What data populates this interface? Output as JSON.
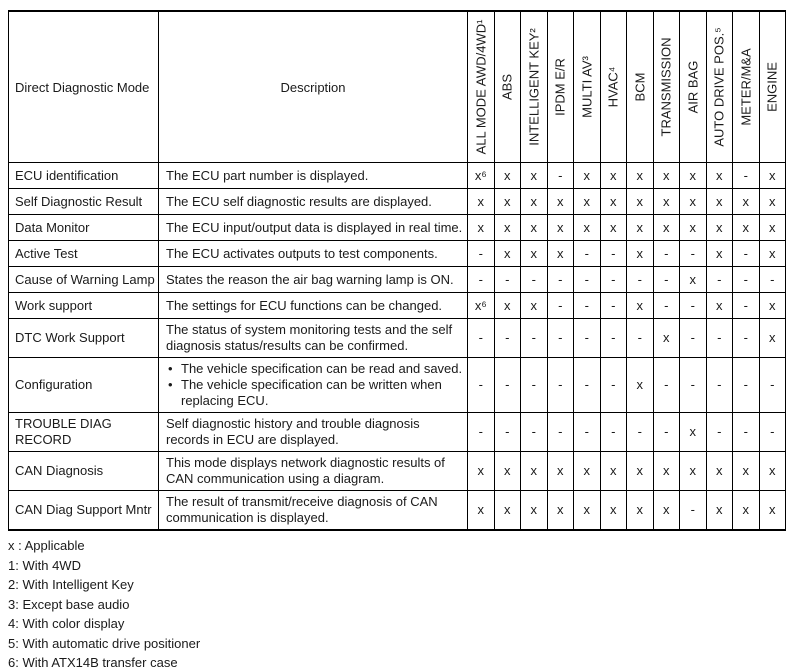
{
  "table": {
    "header": {
      "mode_col": "Direct Diagnostic Mode",
      "desc_col": "Description",
      "system_cols": [
        "ALL MODE AWD/4WD¹",
        "ABS",
        "INTELLIGENT KEY²",
        "IPDM E/R",
        "MULTI AV³",
        "HVAC⁴",
        "BCM",
        "TRANSMISSION",
        "AIR BAG",
        "AUTO DRIVE POS.⁵",
        "METER/M&A",
        "ENGINE"
      ]
    },
    "rows": [
      {
        "mode": "ECU identification",
        "bullets": false,
        "description": [
          "The ECU part number is displayed."
        ],
        "values": [
          "x⁶",
          "x",
          "x",
          "-",
          "x",
          "x",
          "x",
          "x",
          "x",
          "x",
          "-",
          "x"
        ]
      },
      {
        "mode": "Self Diagnostic Result",
        "bullets": false,
        "description": [
          "The ECU self diagnostic results are displayed."
        ],
        "values": [
          "x",
          "x",
          "x",
          "x",
          "x",
          "x",
          "x",
          "x",
          "x",
          "x",
          "x",
          "x"
        ]
      },
      {
        "mode": "Data Monitor",
        "bullets": false,
        "description": [
          "The ECU input/output data is displayed in real time."
        ],
        "values": [
          "x",
          "x",
          "x",
          "x",
          "x",
          "x",
          "x",
          "x",
          "x",
          "x",
          "x",
          "x"
        ]
      },
      {
        "mode": "Active Test",
        "bullets": false,
        "description": [
          "The ECU activates outputs to test components."
        ],
        "values": [
          "-",
          "x",
          "x",
          "x",
          "-",
          "-",
          "x",
          "-",
          "-",
          "x",
          "-",
          "x"
        ]
      },
      {
        "mode": "Cause of Warning Lamp",
        "bullets": false,
        "description": [
          "States the reason the air bag warning lamp is ON."
        ],
        "values": [
          "-",
          "-",
          "-",
          "-",
          "-",
          "-",
          "-",
          "-",
          "x",
          "-",
          "-",
          "-"
        ]
      },
      {
        "mode": "Work support",
        "bullets": false,
        "description": [
          "The settings for ECU functions can be changed."
        ],
        "values": [
          "x⁶",
          "x",
          "x",
          "-",
          "-",
          "-",
          "x",
          "-",
          "-",
          "x",
          "-",
          "x"
        ]
      },
      {
        "mode": "DTC Work Support",
        "bullets": false,
        "description": [
          "The status of system monitoring tests and the self diagnosis status/results can be confirmed."
        ],
        "values": [
          "-",
          "-",
          "-",
          "-",
          "-",
          "-",
          "-",
          "x",
          "-",
          "-",
          "-",
          "x"
        ]
      },
      {
        "mode": "Configuration",
        "bullets": true,
        "description": [
          "The vehicle specification can be read and saved.",
          "The vehicle specification can be written when replacing ECU."
        ],
        "values": [
          "-",
          "-",
          "-",
          "-",
          "-",
          "-",
          "x",
          "-",
          "-",
          "-",
          "-",
          "-"
        ]
      },
      {
        "mode": "TROUBLE DIAG RECORD",
        "bullets": false,
        "description": [
          "Self diagnostic history and trouble diagnosis records in ECU are displayed."
        ],
        "values": [
          "-",
          "-",
          "-",
          "-",
          "-",
          "-",
          "-",
          "-",
          "x",
          "-",
          "-",
          "-"
        ]
      },
      {
        "mode": "CAN Diagnosis",
        "bullets": false,
        "description": [
          "This mode displays network diagnostic results of CAN communication using a diagram."
        ],
        "values": [
          "x",
          "x",
          "x",
          "x",
          "x",
          "x",
          "x",
          "x",
          "x",
          "x",
          "x",
          "x"
        ]
      },
      {
        "mode": "CAN Diag Support Mntr",
        "bullets": false,
        "description": [
          "The result of transmit/receive diagnosis of CAN communication is displayed."
        ],
        "values": [
          "x",
          "x",
          "x",
          "x",
          "x",
          "x",
          "x",
          "x",
          "-",
          "x",
          "x",
          "x"
        ]
      }
    ]
  },
  "footnotes": [
    "x : Applicable",
    "1: With 4WD",
    "2: With Intelligent Key",
    "3: Except base audio",
    "4: With color display",
    "5: With automatic drive positioner",
    "6: With ATX14B transfer case"
  ],
  "colors": {
    "background": "#ffffff",
    "text": "#1a1a1a",
    "border": "#000000"
  }
}
